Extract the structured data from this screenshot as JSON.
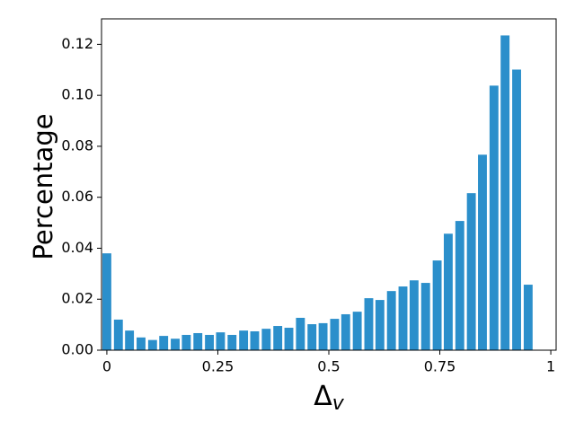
{
  "chart_data": {
    "type": "bar",
    "ylabel": "Percentage",
    "xlabel": [
      "Δ",
      "v"
    ],
    "x": [
      0,
      0.026,
      0.051,
      0.077,
      0.103,
      0.128,
      0.154,
      0.179,
      0.205,
      0.231,
      0.256,
      0.282,
      0.308,
      0.333,
      0.359,
      0.385,
      0.41,
      0.436,
      0.462,
      0.487,
      0.513,
      0.538,
      0.564,
      0.59,
      0.615,
      0.641,
      0.667,
      0.692,
      0.718,
      0.744,
      0.769,
      0.795,
      0.821,
      0.846,
      0.872,
      0.897,
      0.923,
      0.949
    ],
    "values": [
      0.038,
      0.012,
      0.0077,
      0.005,
      0.004,
      0.0056,
      0.0045,
      0.006,
      0.0067,
      0.006,
      0.007,
      0.006,
      0.0077,
      0.0074,
      0.0084,
      0.0095,
      0.0088,
      0.0127,
      0.0102,
      0.0106,
      0.0123,
      0.0141,
      0.0151,
      0.0204,
      0.0197,
      0.0232,
      0.025,
      0.0274,
      0.0264,
      0.0352,
      0.0457,
      0.0507,
      0.0616,
      0.0767,
      0.1038,
      0.1235,
      0.1101,
      0.0257
    ],
    "bar_width": 0.02,
    "color": "#2b8fcb",
    "xlim": [
      -0.012,
      1.012
    ],
    "xticks": [
      0,
      0.25,
      0.5,
      0.75,
      1
    ],
    "ylim": [
      0,
      0.13
    ],
    "yticks": [
      {
        "value": 0,
        "label": "0.00"
      },
      0.02,
      0.04,
      0.06,
      0.08,
      {
        "value": 0.1,
        "label": "0.10"
      },
      0.12
    ]
  }
}
